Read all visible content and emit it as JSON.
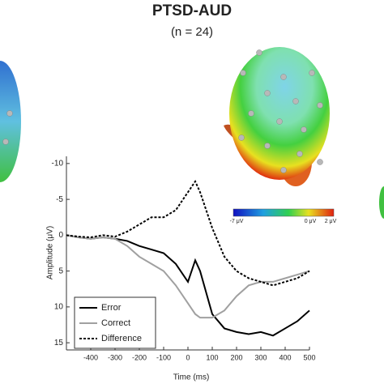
{
  "chart_data": {
    "type": "line",
    "title": "PTSD-AUD",
    "subtitle": "(n = 24)",
    "x_label": "Time (ms)",
    "y_label": "Amplitude (μV)",
    "x": [
      -500,
      -450,
      -400,
      -350,
      -300,
      -250,
      -200,
      -150,
      -100,
      -50,
      0,
      30,
      50,
      100,
      150,
      200,
      250,
      300,
      350,
      400,
      450,
      500
    ],
    "series": [
      {
        "name": "Error",
        "color": "#000000",
        "dash": false,
        "values": [
          0,
          0.3,
          0.5,
          0.3,
          0.5,
          0.8,
          1.5,
          2,
          2.5,
          4,
          6.5,
          3.5,
          5,
          11,
          13,
          13.5,
          13.8,
          13.5,
          14,
          13,
          12,
          10.5
        ]
      },
      {
        "name": "Correct",
        "color": "#a0a0a0",
        "dash": false,
        "values": [
          0,
          0.3,
          0.5,
          0.3,
          0.5,
          1.5,
          3,
          4,
          5,
          7,
          9.5,
          11,
          11.5,
          11.5,
          10.5,
          8.5,
          7,
          6.5,
          6.5,
          6,
          5.5,
          5
        ]
      },
      {
        "name": "Difference",
        "color": "#000000",
        "dash": true,
        "values": [
          0,
          0.2,
          0.3,
          0,
          0.2,
          -0.5,
          -1.5,
          -2.5,
          -2.5,
          -3.5,
          -6,
          -7.5,
          -6,
          -1,
          3,
          5,
          6,
          6.5,
          7,
          6.5,
          6,
          5
        ]
      }
    ],
    "xlim": [
      -500,
      500
    ],
    "xticks": [
      -400,
      -300,
      -200,
      -100,
      0,
      100,
      200,
      300,
      400,
      500
    ],
    "ylim": [
      -11,
      16
    ],
    "yticks": [
      -10,
      -5,
      0,
      5,
      10,
      15
    ],
    "invert_y": true,
    "colorbar_labels": [
      "-7 μV",
      "0 μV",
      "2 μV"
    ]
  }
}
